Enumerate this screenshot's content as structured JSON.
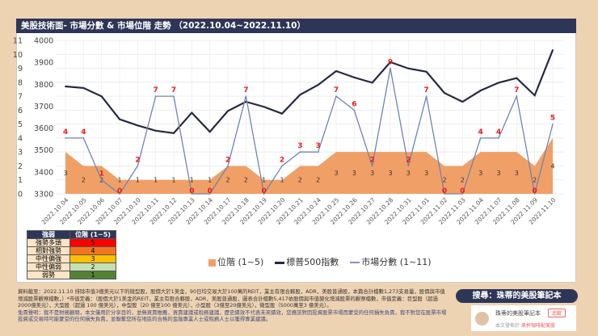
{
  "title": "美股技術面- 市場分數 & 市場位階 走勢 （2022.10.04~2022.11.10）",
  "chart_data": {
    "type": "line",
    "title": "美股技術面- 市場分數 & 市場位階 走勢 （2022.10.04~2022.11.10）",
    "categories": [
      "2022.10.04",
      "2022.10.05",
      "2022.10.06",
      "2022.10.07",
      "2022.10.10",
      "2022.10.11",
      "2022.10.12",
      "2022.10.13",
      "2022.10.14",
      "2022.10.17",
      "2022.10.18",
      "2022.10.19",
      "2022.10.20",
      "2022.10.21",
      "2022.10.24",
      "2022.10.25",
      "2022.10.26",
      "2022.10.27",
      "2022.10.28",
      "2022.10.31",
      "2022.11.01",
      "2022.11.02",
      "2022.11.03",
      "2022.11.04",
      "2022.11.07",
      "2022.11.08",
      "2022.11.09",
      "2022.11.10"
    ],
    "y_left": {
      "range": [
        0,
        11
      ],
      "ticks": [
        "0",
        "1",
        "2",
        "3",
        "4",
        "5",
        "6",
        "7",
        "8",
        "9",
        "10",
        "11"
      ]
    },
    "y_right": {
      "range": [
        3300,
        4000
      ],
      "ticks": [
        "3300",
        "3400",
        "3500",
        "3600",
        "3700",
        "3800",
        "3900",
        "4000"
      ]
    },
    "grid": true,
    "legend_position": "bottom",
    "series": [
      {
        "name": "位階 (1~5)",
        "type": "area",
        "axis": "left",
        "color": "#f0a066",
        "values": [
          3,
          2,
          2,
          1,
          1,
          1,
          1,
          1,
          1,
          2,
          2,
          1,
          1,
          2,
          2,
          3,
          3,
          3,
          3,
          3,
          3,
          2,
          2,
          3,
          3,
          3,
          2,
          4
        ]
      },
      {
        "name": "標普500指數",
        "type": "line",
        "axis": "right",
        "color": "#252a3f",
        "values": [
          3790,
          3783,
          3745,
          3640,
          3612,
          3588,
          3577,
          3670,
          3583,
          3678,
          3720,
          3697,
          3666,
          3752,
          3797,
          3860,
          3831,
          3807,
          3901,
          3872,
          3857,
          3760,
          3720,
          3771,
          3807,
          3828,
          3749,
          3956
        ]
      },
      {
        "name": "市場分數 (1~11)",
        "type": "line",
        "axis": "left",
        "color": "#6f84b5",
        "values": [
          4,
          4,
          1,
          0,
          2,
          7,
          7,
          0,
          0,
          2,
          7,
          0,
          2,
          3,
          3,
          7,
          6,
          2,
          9,
          2,
          7,
          0,
          0,
          4,
          4,
          7,
          0,
          5
        ]
      }
    ]
  },
  "level_table": {
    "headers": [
      "強弱",
      "位階 (1~5)"
    ],
    "rows": [
      {
        "label": "強勢多頭",
        "value": "5",
        "color": "#ff0000"
      },
      {
        "label": "相對強勢",
        "value": "4",
        "color": "#f4751f"
      },
      {
        "label": "中性偏強",
        "value": "3",
        "color": "#ffc000"
      },
      {
        "label": "中性偏弱",
        "value": "2",
        "color": "#c6e0b4"
      },
      {
        "label": "弱勢",
        "value": "1",
        "color": "#548235"
      }
    ]
  },
  "footer": {
    "data_note": "資料截至：2022.11.10 排除市值3億美元以下的微型股，股價大於1美金，90日均交易大於100萬的REIT，業主有限合夥股，ADR，美股普通股，本篇合計檔數1,273支易量，股價與市值增減股票觀察檔數，）*市值定義：（股價大於1美金的REIT，業主有限合夥股，ADR，美股普通股，圖表合計檔數5,417依股價與市值變化增減股票的觀察檔數，市值定義：巨型股（超過2000億美元），大型股（超過 100 億美元），中型股（20 億至100 億美元），小型股（3億至20億美元），微型股（5000萬至3 億美元）。",
    "disclaimer": "免責聲明：我不是財務顧問，本文僅用於分享目的，並無買賣推薦，買賣建議或稅務建議，歷史績效不代表未來績效，您應該對因投資股票市場而蒙受的任何損失負責，我不對您在股票市場投資或交易時可能蒙受的任何損失負責，並聯繫您所在地區的合格的金融專業人士或稅務人士以獲得專業建議。"
  },
  "search_banner": "搜尋：珠蒂的美股筆記本",
  "card": {
    "name": "珠蒂的美股筆記本",
    "follow": "追蹤",
    "published_prefix": "本文發佈於",
    "published_site": "來杯咖啡配美股"
  }
}
